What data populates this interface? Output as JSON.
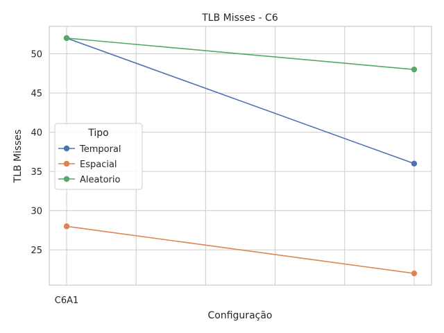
{
  "chart_data": {
    "type": "line",
    "title": "TLB Misses - C6",
    "xlabel": "Configuração",
    "ylabel": "TLB Misses",
    "x_tick_labels": [
      "C6A1"
    ],
    "x": [
      0,
      1
    ],
    "xlim": [
      -0.05,
      1.05
    ],
    "ylim": [
      20.5,
      53.5
    ],
    "yticks": [
      25,
      30,
      35,
      40,
      45,
      50
    ],
    "x_grid_positions": [
      0,
      0.2,
      0.4,
      0.6,
      0.8,
      1.0
    ],
    "grid": true,
    "legend": {
      "title": "Tipo",
      "placement": "center-left"
    },
    "series": [
      {
        "name": "Temporal",
        "values": [
          52,
          36
        ],
        "color": "#4c72b0"
      },
      {
        "name": "Espacial",
        "values": [
          28,
          22
        ],
        "color": "#dd8452"
      },
      {
        "name": "Aleatorio",
        "values": [
          52,
          48
        ],
        "color": "#55a868"
      }
    ]
  }
}
